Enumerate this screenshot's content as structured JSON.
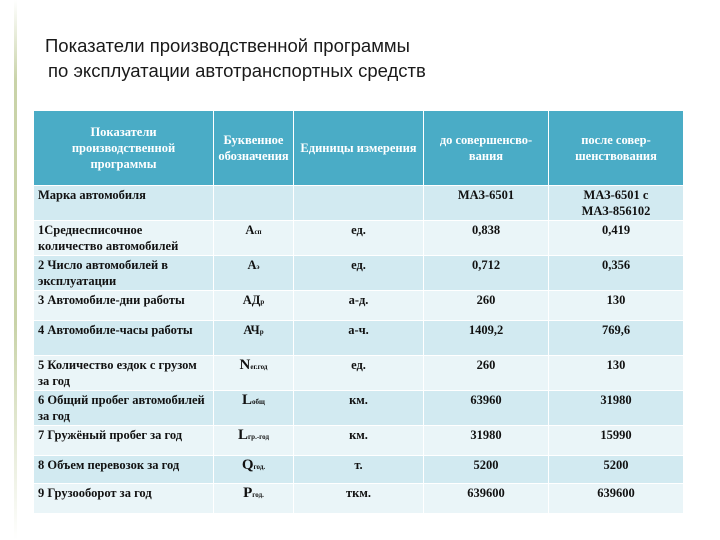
{
  "header": {
    "title_lines": [
      "Показатели производственной программы",
      "по эксплуатации автотранспортных средств"
    ]
  },
  "table": {
    "columns": [
      "Показатели производственной программы",
      "Буквенное обозначения",
      "Единицы измерения",
      "до совершенсво-вания",
      "после совер-шенствования"
    ],
    "rows": [
      {
        "label": "Марка автомобиля",
        "before": "МАЗ-6501",
        "after": "МАЗ-6501 с МАЗ-856102"
      },
      {
        "label": "1Среднесписочное количество автомобилей",
        "symbol": {
          "base": "А",
          "sub": "сп"
        },
        "unit": "ед.",
        "before": "0,838",
        "after": "0,419"
      },
      {
        "label": "2 Число автомобилей в эксплуатации",
        "symbol": {
          "base": "А",
          "sub": "э"
        },
        "unit": "ед.",
        "before": "0,712",
        "after": "0,356"
      },
      {
        "label": "3 Автомобиле-дни работы",
        "symbol": {
          "base": "АД",
          "sub": "р"
        },
        "unit": "а-д.",
        "before": "260",
        "after": "130"
      },
      {
        "label": "4 Автомобиле-часы работы",
        "symbol": {
          "base": "АЧ",
          "sub": "р"
        },
        "unit": "а-ч.",
        "before": "1409,2",
        "after": "769,6"
      },
      {
        "label": "5 Количество ездок с грузом за год",
        "symbol": {
          "base": "N",
          "sub": "ег.год"
        },
        "unit": "ед.",
        "before": "260",
        "after": "130"
      },
      {
        "label": "6 Общий пробег автомобилей за год",
        "symbol": {
          "base": "L",
          "sub": "общ"
        },
        "unit": "км.",
        "before": "63960",
        "after": "31980"
      },
      {
        "label": "7 Гружёный пробег за год",
        "symbol": {
          "base": "L",
          "sub": "гр.-год"
        },
        "unit": "км.",
        "before": "31980",
        "after": "15990"
      },
      {
        "label": "8 Объем перевозок за год",
        "symbol": {
          "base": "Q",
          "sub": "год."
        },
        "unit": "т.",
        "before": "5200",
        "after": "5200"
      },
      {
        "label": "9 Грузооборот за год",
        "symbol": {
          "base": "Р",
          "sub": "год."
        },
        "unit": "ткм.",
        "before": "639600",
        "after": "639600"
      }
    ]
  }
}
